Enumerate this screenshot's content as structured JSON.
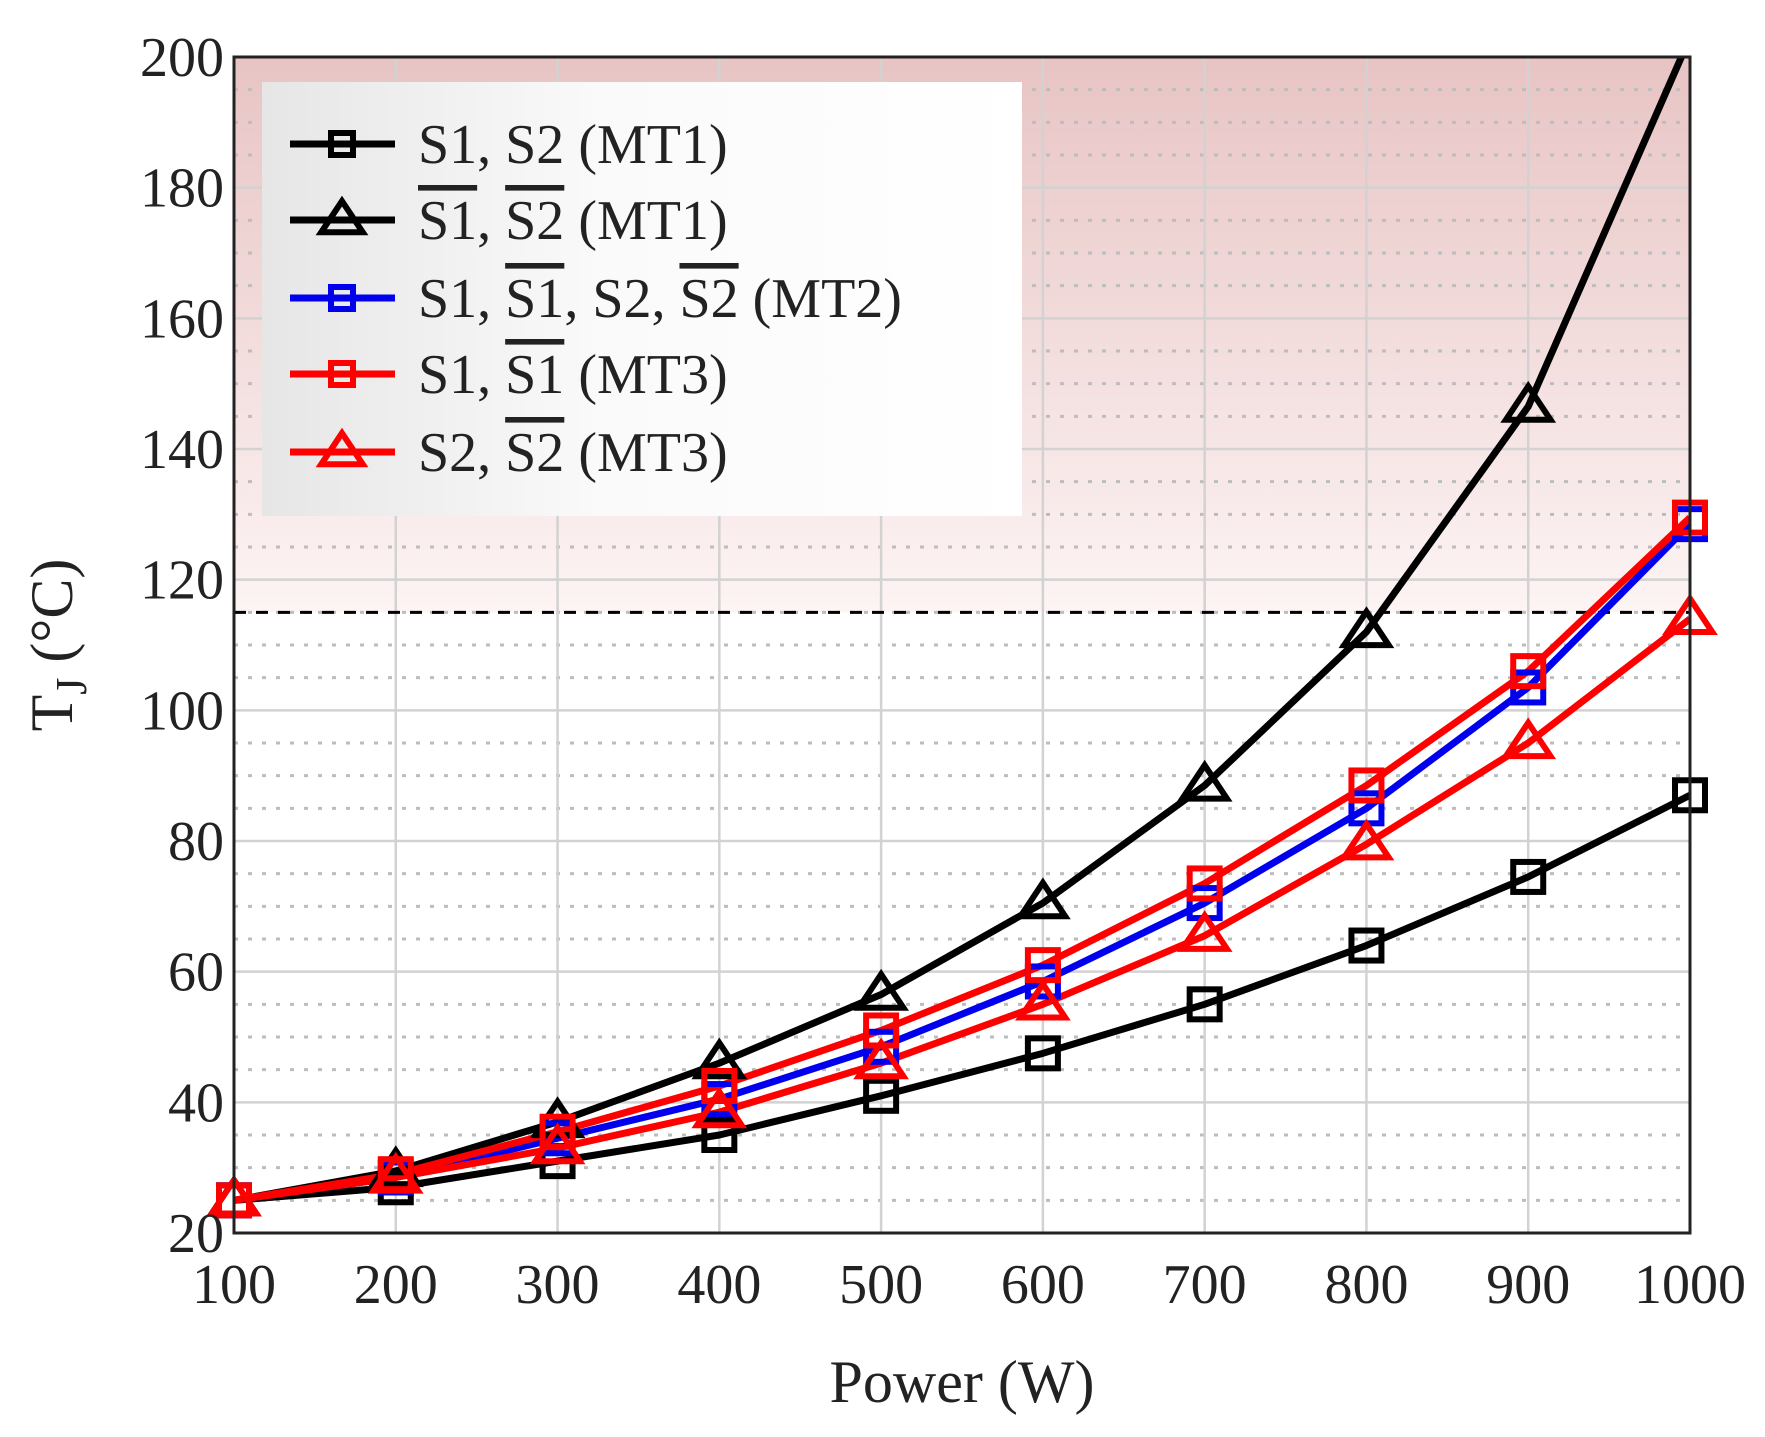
{
  "chart_data": {
    "type": "line",
    "title": "",
    "xlabel": "Power (W)",
    "ylabel": "T",
    "ylabel_sub": "J",
    "ylabel_unit": " (°C)",
    "xlim": [
      100,
      1000
    ],
    "ylim": [
      20,
      200
    ],
    "xticks": [
      100,
      200,
      300,
      400,
      500,
      600,
      700,
      800,
      900,
      1000
    ],
    "yticks": [
      20,
      40,
      60,
      80,
      100,
      120,
      140,
      160,
      180,
      200
    ],
    "x": [
      100,
      200,
      300,
      400,
      500,
      600,
      700,
      800,
      900,
      1000
    ],
    "grid": true,
    "threshold": 115,
    "legend_position": "top-left",
    "series": [
      {
        "name": "S1, S2 (MT1)",
        "color": "#000000",
        "marker": "square",
        "values": [
          25,
          27,
          31,
          35,
          41,
          47.5,
          55,
          64,
          74.5,
          87
        ],
        "legend": [
          {
            "t": "S1",
            "bar": false
          },
          {
            "t": ", ",
            "bar": false
          },
          {
            "t": "S2",
            "bar": false
          },
          {
            "t": " (MT1)",
            "bar": false
          }
        ]
      },
      {
        "name": "S1-bar, S2-bar (MT1)",
        "color": "#000000",
        "marker": "triangle",
        "values": [
          25,
          29.5,
          37,
          46,
          56.5,
          70.5,
          88.5,
          112,
          146.5,
          203
        ],
        "legend": [
          {
            "t": "S1",
            "bar": true
          },
          {
            "t": ", ",
            "bar": false
          },
          {
            "t": "S2",
            "bar": true
          },
          {
            "t": " (MT1)",
            "bar": false
          }
        ]
      },
      {
        "name": "S1, S1-bar, S2, S2-bar (MT2)",
        "color": "#0000ee",
        "marker": "square",
        "values": [
          25,
          28.5,
          34.5,
          40.5,
          48.5,
          58.5,
          70.5,
          85,
          103.5,
          128.5
        ],
        "legend": [
          {
            "t": "S1",
            "bar": false
          },
          {
            "t": ", ",
            "bar": false
          },
          {
            "t": "S1",
            "bar": true
          },
          {
            "t": ", ",
            "bar": false
          },
          {
            "t": "S2",
            "bar": false
          },
          {
            "t": ", ",
            "bar": false
          },
          {
            "t": "S2",
            "bar": true
          },
          {
            "t": " (MT2)",
            "bar": false
          }
        ]
      },
      {
        "name": "S1, S1-bar (MT3)",
        "color": "#ff0000",
        "marker": "square",
        "values": [
          25,
          29,
          35.5,
          42.5,
          51,
          61,
          73.5,
          88.5,
          106,
          129.5
        ],
        "legend": [
          {
            "t": "S1",
            "bar": false
          },
          {
            "t": ", ",
            "bar": false
          },
          {
            "t": "S1",
            "bar": true
          },
          {
            "t": " (MT3)",
            "bar": false
          }
        ]
      },
      {
        "name": "S2, S2-bar (MT3)",
        "color": "#ff0000",
        "marker": "triangle",
        "values": [
          25,
          28.5,
          33,
          38.5,
          46,
          55,
          65.5,
          79.5,
          95,
          114
        ],
        "legend": [
          {
            "t": "S2",
            "bar": false
          },
          {
            "t": ", ",
            "bar": false
          },
          {
            "t": "S2",
            "bar": true
          },
          {
            "t": " (MT3)",
            "bar": false
          }
        ]
      }
    ]
  }
}
